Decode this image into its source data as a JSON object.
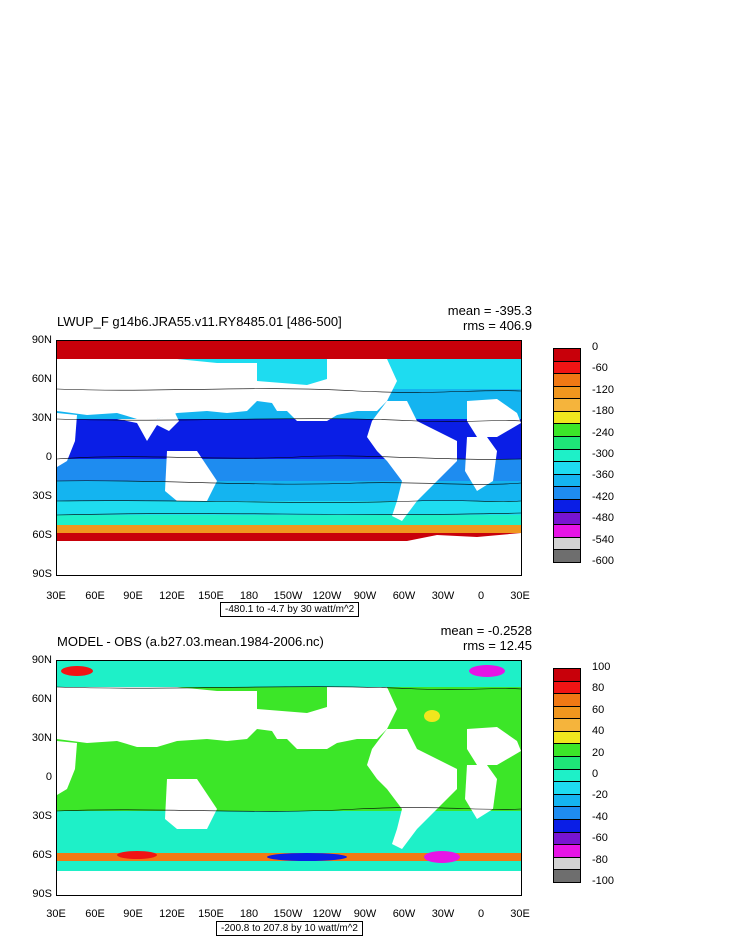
{
  "chart_data": [
    {
      "type": "heatmap",
      "title": "LWUP_F g14b6.JRA55.v11.RY8485.01 [486-500]",
      "mean_label": "mean = -395.3",
      "rms_label": "rms = 406.9",
      "range_label": "-480.1 to -4.7 by 30 watt/m^2",
      "lat_ticks": [
        "90N",
        "60N",
        "30N",
        "0",
        "30S",
        "60S",
        "90S"
      ],
      "lon_ticks": [
        "30E",
        "60E",
        "90E",
        "120E",
        "150E",
        "180",
        "150W",
        "120W",
        "90W",
        "60W",
        "30W",
        "0",
        "30E"
      ],
      "colorbar": {
        "labels": [
          "0",
          "-60",
          "-120",
          "-180",
          "-240",
          "-300",
          "-360",
          "-420",
          "-480",
          "-540",
          "-600"
        ],
        "colors": [
          "#c8000a",
          "#f01414",
          "#f07814",
          "#f0961e",
          "#f5b43c",
          "#f0e61e",
          "#3ce628",
          "#1ee678",
          "#1ef0c8",
          "#1edcf0",
          "#14b4f0",
          "#1e8cf0",
          "#0a1ee6",
          "#7814d2",
          "#e614e6",
          "#d2d2d2",
          "#6e6e6e"
        ]
      }
    },
    {
      "type": "heatmap",
      "title": "MODEL - OBS (a.b27.03.mean.1984-2006.nc)",
      "mean_label": "mean = -0.2528",
      "rms_label": "rms = 12.45",
      "range_label": "-200.8 to 207.8 by 10 watt/m^2",
      "lat_ticks": [
        "90N",
        "60N",
        "30N",
        "0",
        "30S",
        "60S",
        "90S"
      ],
      "lon_ticks": [
        "30E",
        "60E",
        "90E",
        "120E",
        "150E",
        "180",
        "150W",
        "120W",
        "90W",
        "60W",
        "30W",
        "0",
        "30E"
      ],
      "colorbar": {
        "labels": [
          "100",
          "80",
          "60",
          "40",
          "20",
          "0",
          "-20",
          "-40",
          "-60",
          "-80",
          "-100"
        ],
        "colors": [
          "#c8000a",
          "#f01414",
          "#f07814",
          "#f0961e",
          "#f5b43c",
          "#f0e61e",
          "#3ce628",
          "#1ee678",
          "#1ef0c8",
          "#1edcf0",
          "#14b4f0",
          "#1e8cf0",
          "#0a1ee6",
          "#7814d2",
          "#e614e6",
          "#d2d2d2",
          "#6e6e6e"
        ]
      }
    }
  ]
}
